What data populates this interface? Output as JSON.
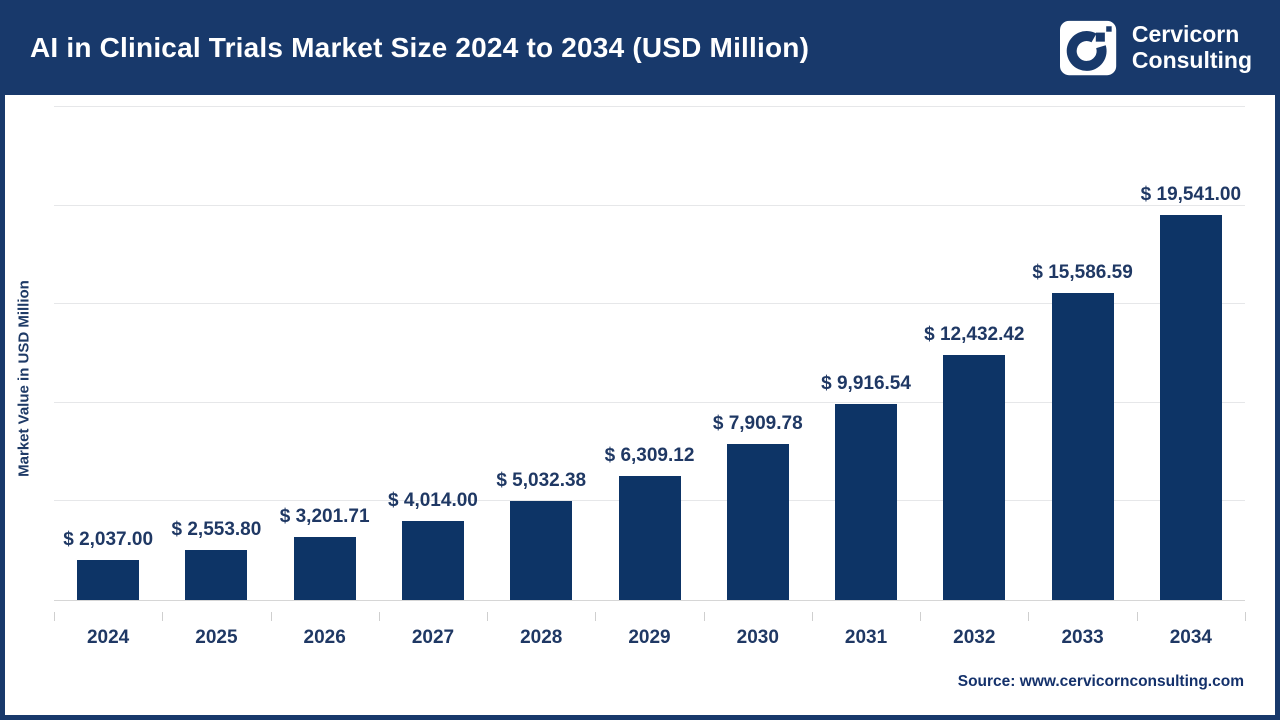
{
  "header": {
    "title": "AI in Clinical Trials Market Size 2024 to 2034 (USD Million)",
    "brand": {
      "line1": "Cervicorn",
      "line2": "Consulting"
    }
  },
  "chart_data": {
    "type": "bar",
    "title": "AI in Clinical Trials Market Size 2024 to 2034 (USD Million)",
    "categories": [
      "2024",
      "2025",
      "2026",
      "2027",
      "2028",
      "2029",
      "2030",
      "2031",
      "2032",
      "2033",
      "2034"
    ],
    "values": [
      2037.0,
      2553.8,
      3201.71,
      4014.0,
      5032.38,
      6309.12,
      7909.78,
      9916.54,
      12432.42,
      15586.59,
      19541.0
    ],
    "value_labels": [
      "$ 2,037.00",
      "$ 2,553.80",
      "$ 3,201.71",
      "$ 4,014.00",
      "$ 5,032.38",
      "$ 6,309.12",
      "$ 7,909.78",
      "$ 9,916.54",
      "$ 12,432.42",
      "$ 15,586.59",
      "$ 19,541.00"
    ],
    "xlabel": "",
    "ylabel": "Market Value in USD Million",
    "ylim": [
      0,
      25000
    ],
    "gridline_step": 5000,
    "grid": true,
    "legend_position": "none",
    "bar_color": "#0d3466",
    "label_color": "#1f3864"
  },
  "footer": {
    "source": "Source: www.cervicornconsulting.com"
  },
  "colors": {
    "header_navy": "#18396b",
    "bar_navy": "#0d3466",
    "text_navy": "#1f3864",
    "gridline": "#e6e7e9"
  }
}
